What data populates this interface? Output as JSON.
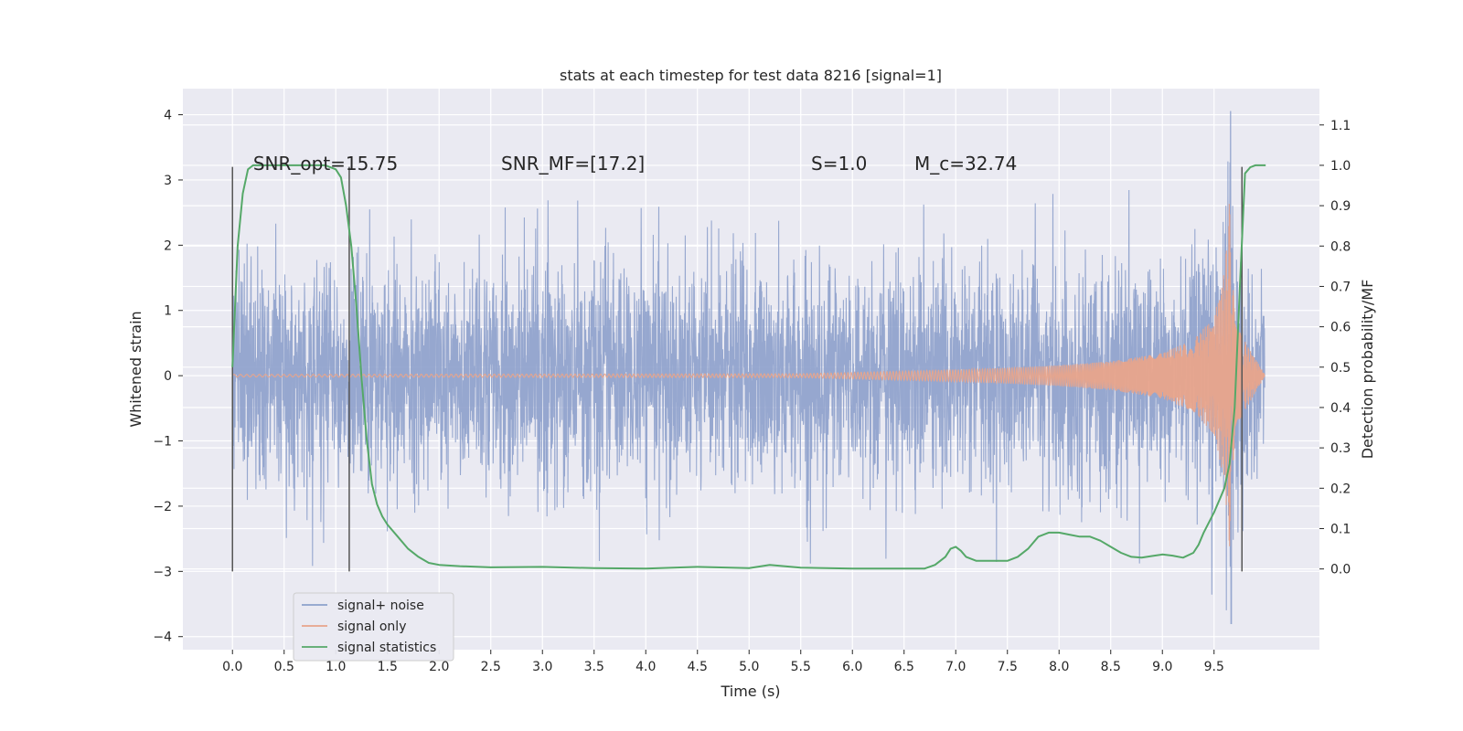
{
  "chart_data": {
    "type": "line",
    "title": "stats at each timestep for test data 8216 [signal=1]",
    "xlabel": "Time (s)",
    "ylabel": "Whitened strain",
    "y2label": "Detection probability/MF",
    "xlim": [
      -0.48,
      10.52
    ],
    "ylim": [
      -4.2,
      4.4
    ],
    "y2lim": [
      -0.2,
      1.19
    ],
    "x_ticks": [
      0.0,
      0.5,
      1.0,
      1.5,
      2.0,
      2.5,
      3.0,
      3.5,
      4.0,
      4.5,
      5.0,
      5.5,
      6.0,
      6.5,
      7.0,
      7.5,
      8.0,
      8.5,
      9.0,
      9.5
    ],
    "x_tick_labels": [
      "0.0",
      "0.5",
      "1.0",
      "1.5",
      "2.0",
      "2.5",
      "3.0",
      "3.5",
      "4.0",
      "4.5",
      "5.0",
      "5.5",
      "6.0",
      "6.5",
      "7.0",
      "7.5",
      "8.0",
      "8.5",
      "9.0",
      "9.5"
    ],
    "y_ticks": [
      -4,
      -3,
      -2,
      -1,
      0,
      1,
      2,
      3,
      4
    ],
    "y_tick_labels": [
      "−4",
      "−3",
      "−2",
      "−1",
      "0",
      "1",
      "2",
      "3",
      "4"
    ],
    "y2_ticks": [
      0.0,
      0.1,
      0.2,
      0.3,
      0.4,
      0.5,
      0.6,
      0.7,
      0.8,
      0.9,
      1.0,
      1.1
    ],
    "y2_tick_labels": [
      "0.0",
      "0.1",
      "0.2",
      "0.3",
      "0.4",
      "0.5",
      "0.6",
      "0.7",
      "0.8",
      "0.9",
      "1.0",
      "1.1"
    ],
    "grid": true,
    "legend_position": "lower-left",
    "annotations": [
      {
        "text": "SNR_opt=15.75",
        "x": 0.2
      },
      {
        "text": "SNR_MF=[17.2]",
        "x": 2.6
      },
      {
        "text": "S=1.0",
        "x": 5.6
      },
      {
        "text": "M_c=32.74",
        "x": 6.6
      }
    ],
    "vertical_lines": [
      {
        "x": 0.0,
        "y_range": [
          -3,
          3.2
        ]
      },
      {
        "x": 1.13,
        "y_range": [
          -3,
          3.2
        ]
      },
      {
        "x": 9.77,
        "y_range": [
          -3,
          3.2
        ]
      }
    ],
    "series": [
      {
        "name": "signal+ noise",
        "color": "#8da0cb",
        "description": "whitened noisy strain sampled at ~410 Hz, amplitude within about ±2.5 with spikes to ±3.9 near t=9.66",
        "x_range": [
          0.0,
          9.99
        ],
        "envelope_upper": 1.35,
        "envelope_lower": -1.35,
        "peak_max": {
          "x": 9.66,
          "y": 4.05
        },
        "peak_min": {
          "x": 9.66,
          "y": -3.8
        }
      },
      {
        "name": "signal only",
        "color": "#e8a48b",
        "description": "chirp waveform growing to merger at t≈9.66",
        "x": [
          0.0,
          5.5,
          6.0,
          6.5,
          7.0,
          7.5,
          8.0,
          8.5,
          9.0,
          9.3,
          9.5,
          9.6,
          9.66,
          9.7,
          9.99
        ],
        "amplitude": [
          0.02,
          0.03,
          0.05,
          0.07,
          0.09,
          0.12,
          0.16,
          0.22,
          0.35,
          0.55,
          0.9,
          1.6,
          2.9,
          0.8,
          0.02
        ]
      },
      {
        "name": "signal statistics",
        "color": "#55a868",
        "axis": "right",
        "x": [
          0.0,
          0.05,
          0.1,
          0.15,
          0.2,
          0.3,
          0.5,
          0.7,
          0.9,
          1.0,
          1.05,
          1.1,
          1.15,
          1.2,
          1.25,
          1.3,
          1.35,
          1.4,
          1.45,
          1.5,
          1.6,
          1.7,
          1.8,
          1.9,
          2.0,
          2.2,
          2.5,
          3.0,
          3.5,
          4.0,
          4.5,
          5.0,
          5.2,
          5.5,
          6.0,
          6.5,
          6.7,
          6.8,
          6.9,
          6.95,
          7.0,
          7.05,
          7.1,
          7.2,
          7.3,
          7.5,
          7.6,
          7.7,
          7.8,
          7.9,
          8.0,
          8.1,
          8.2,
          8.3,
          8.4,
          8.5,
          8.6,
          8.7,
          8.8,
          8.9,
          9.0,
          9.1,
          9.2,
          9.3,
          9.35,
          9.4,
          9.5,
          9.55,
          9.6,
          9.65,
          9.7,
          9.75,
          9.8,
          9.85,
          9.9,
          10.0
        ],
        "values": [
          0.5,
          0.8,
          0.93,
          0.99,
          1.0,
          1.0,
          1.0,
          1.0,
          1.0,
          0.99,
          0.97,
          0.9,
          0.8,
          0.65,
          0.47,
          0.32,
          0.21,
          0.16,
          0.13,
          0.11,
          0.08,
          0.05,
          0.03,
          0.015,
          0.01,
          0.007,
          0.004,
          0.005,
          0.002,
          0.001,
          0.005,
          0.002,
          0.01,
          0.003,
          0.001,
          0.001,
          0.001,
          0.01,
          0.03,
          0.05,
          0.055,
          0.045,
          0.03,
          0.02,
          0.02,
          0.02,
          0.03,
          0.05,
          0.08,
          0.09,
          0.09,
          0.085,
          0.08,
          0.08,
          0.07,
          0.055,
          0.04,
          0.03,
          0.028,
          0.032,
          0.036,
          0.033,
          0.028,
          0.04,
          0.06,
          0.09,
          0.14,
          0.17,
          0.2,
          0.26,
          0.4,
          0.7,
          0.98,
          0.995,
          1.0,
          1.0
        ]
      }
    ]
  }
}
